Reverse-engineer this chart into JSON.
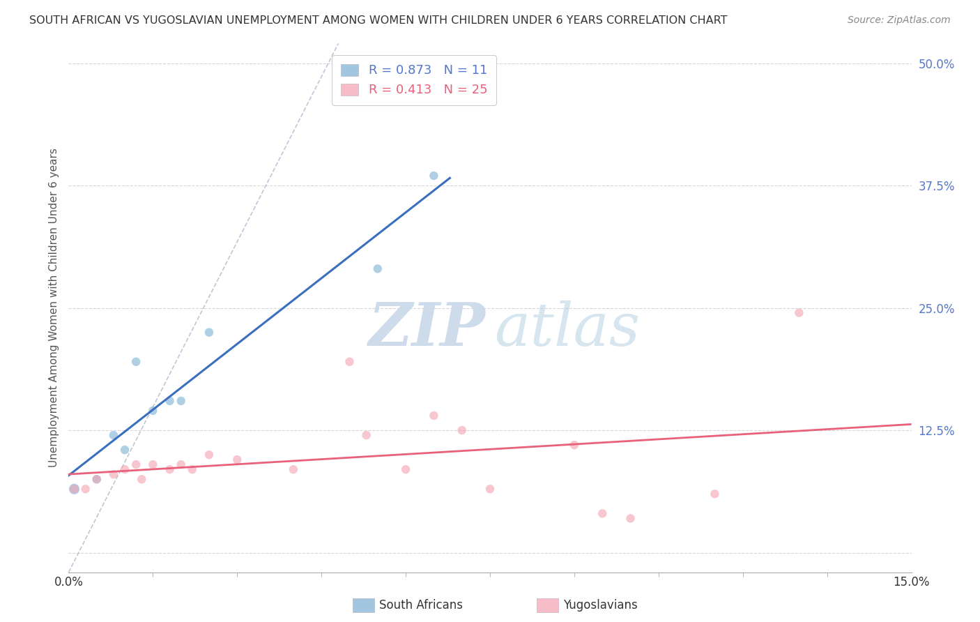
{
  "title": "SOUTH AFRICAN VS YUGOSLAVIAN UNEMPLOYMENT AMONG WOMEN WITH CHILDREN UNDER 6 YEARS CORRELATION CHART",
  "source": "Source: ZipAtlas.com",
  "ylabel": "Unemployment Among Women with Children Under 6 years",
  "legend_sa": "South Africans",
  "legend_yu": "Yugoslavians",
  "R_sa": 0.873,
  "N_sa": 11,
  "R_yu": 0.413,
  "N_yu": 25,
  "color_sa": "#7BAFD4",
  "color_yu": "#F4A0B0",
  "line_sa": "#3A6FBF",
  "line_yu": "#E8607A",
  "dashed_line_color": "#AABBD0",
  "ytick_color": "#5577CC",
  "background_color": "#FFFFFF",
  "grid_color": "#CCCCCC",
  "sa_x": [
    0.001,
    0.005,
    0.008,
    0.01,
    0.012,
    0.015,
    0.018,
    0.02,
    0.025,
    0.055,
    0.065
  ],
  "sa_y": [
    0.065,
    0.075,
    0.12,
    0.105,
    0.195,
    0.145,
    0.155,
    0.155,
    0.225,
    0.29,
    0.385
  ],
  "sa_s": [
    120,
    80,
    80,
    80,
    80,
    80,
    80,
    80,
    80,
    80,
    80
  ],
  "yu_x": [
    0.001,
    0.003,
    0.005,
    0.008,
    0.01,
    0.012,
    0.013,
    0.015,
    0.018,
    0.02,
    0.022,
    0.025,
    0.03,
    0.04,
    0.05,
    0.053,
    0.06,
    0.065,
    0.07,
    0.075,
    0.09,
    0.095,
    0.1,
    0.115,
    0.13
  ],
  "yu_y": [
    0.065,
    0.065,
    0.075,
    0.08,
    0.085,
    0.09,
    0.075,
    0.09,
    0.085,
    0.09,
    0.085,
    0.1,
    0.095,
    0.085,
    0.195,
    0.12,
    0.085,
    0.14,
    0.125,
    0.065,
    0.11,
    0.04,
    0.035,
    0.06,
    0.245
  ],
  "yu_s": [
    80,
    80,
    80,
    80,
    80,
    80,
    80,
    80,
    80,
    80,
    80,
    80,
    80,
    80,
    80,
    80,
    80,
    80,
    80,
    80,
    80,
    80,
    80,
    80,
    80
  ],
  "xmin": 0.0,
  "xmax": 0.15,
  "ymin": -0.02,
  "ymax": 0.52,
  "ytick_values": [
    0.0,
    0.125,
    0.25,
    0.375,
    0.5
  ],
  "ytick_labels": [
    "",
    "12.5%",
    "25.0%",
    "37.5%",
    "50.0%"
  ],
  "xtick_minor_count": 10
}
